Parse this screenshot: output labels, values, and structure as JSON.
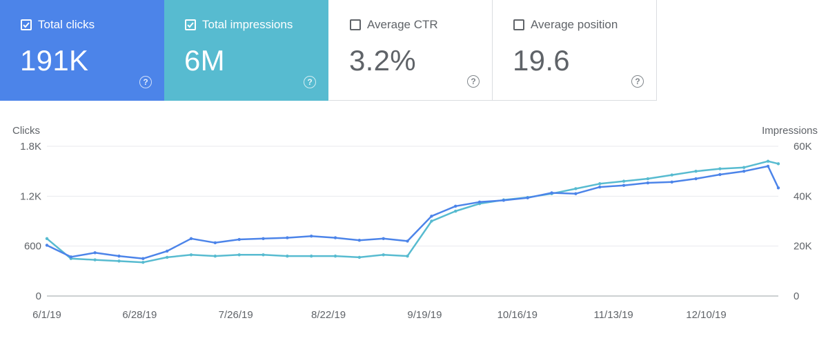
{
  "cards": [
    {
      "label": "Total clicks",
      "value": "191K",
      "checked": true,
      "color": "#4c84e9"
    },
    {
      "label": "Total impressions",
      "value": "6M",
      "checked": true,
      "color": "#57bbd0"
    },
    {
      "label": "Average CTR",
      "value": "3.2%",
      "checked": false,
      "color": "#ffffff"
    },
    {
      "label": "Average position",
      "value": "19.6",
      "checked": false,
      "color": "#ffffff"
    }
  ],
  "help_glyph": "?",
  "chart_data": {
    "type": "line",
    "ylabel_left": "Clicks",
    "ylabel_right": "Impressions",
    "y_left_ticks": [
      "0",
      "600",
      "1.2K",
      "1.8K"
    ],
    "y_right_ticks": [
      "0",
      "20K",
      "40K",
      "60K"
    ],
    "ylim_left": [
      0,
      1800
    ],
    "ylim_right": [
      0,
      60000
    ],
    "xlim": [
      "2019-06-01",
      "2019-12-31"
    ],
    "x_ticks": [
      "6/1/19",
      "6/28/19",
      "7/26/19",
      "8/22/19",
      "9/19/19",
      "10/16/19",
      "11/13/19",
      "12/10/19"
    ],
    "grid": true,
    "series": [
      {
        "name": "Clicks",
        "axis": "left",
        "color": "#4c84e9",
        "x": [
          "2019-06-01",
          "2019-06-08",
          "2019-06-15",
          "2019-06-22",
          "2019-06-29",
          "2019-07-06",
          "2019-07-13",
          "2019-07-20",
          "2019-07-27",
          "2019-08-03",
          "2019-08-10",
          "2019-08-17",
          "2019-08-24",
          "2019-08-31",
          "2019-09-07",
          "2019-09-14",
          "2019-09-21",
          "2019-09-28",
          "2019-10-05",
          "2019-10-12",
          "2019-10-19",
          "2019-10-26",
          "2019-11-02",
          "2019-11-09",
          "2019-11-16",
          "2019-11-23",
          "2019-11-30",
          "2019-12-07",
          "2019-12-14",
          "2019-12-21",
          "2019-12-28",
          "2019-12-31"
        ],
        "values": [
          610,
          470,
          520,
          480,
          450,
          540,
          690,
          640,
          680,
          690,
          700,
          720,
          700,
          670,
          690,
          660,
          960,
          1080,
          1130,
          1150,
          1180,
          1240,
          1230,
          1310,
          1330,
          1360,
          1370,
          1410,
          1460,
          1500,
          1560,
          1300
        ]
      },
      {
        "name": "Impressions",
        "axis": "right",
        "color": "#57bbd0",
        "x": [
          "2019-06-01",
          "2019-06-08",
          "2019-06-15",
          "2019-06-22",
          "2019-06-29",
          "2019-07-06",
          "2019-07-13",
          "2019-07-20",
          "2019-07-27",
          "2019-08-03",
          "2019-08-10",
          "2019-08-17",
          "2019-08-24",
          "2019-08-31",
          "2019-09-07",
          "2019-09-14",
          "2019-09-21",
          "2019-09-28",
          "2019-10-05",
          "2019-10-12",
          "2019-10-19",
          "2019-10-26",
          "2019-11-02",
          "2019-11-09",
          "2019-11-16",
          "2019-11-23",
          "2019-11-30",
          "2019-12-07",
          "2019-12-14",
          "2019-12-21",
          "2019-12-28",
          "2019-12-31"
        ],
        "values": [
          23000,
          15000,
          14500,
          14000,
          13500,
          15500,
          16500,
          16000,
          16500,
          16500,
          16000,
          16000,
          16000,
          15500,
          16500,
          16000,
          30000,
          34000,
          37000,
          38500,
          39500,
          41000,
          43000,
          45000,
          46000,
          47000,
          48500,
          50000,
          51000,
          51500,
          54000,
          53000
        ]
      }
    ]
  }
}
